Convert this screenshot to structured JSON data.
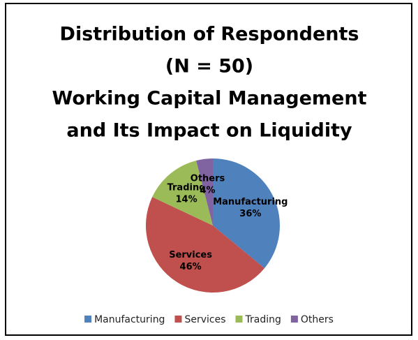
{
  "chart_data": {
    "type": "pie",
    "title": [
      "Distribution of Respondents",
      "(N = 50)",
      "Working Capital Management",
      "and Its Impact on Liquidity"
    ],
    "categories": [
      "Manufacturing",
      "Services",
      "Trading",
      "Others"
    ],
    "values": [
      36,
      46,
      14,
      4
    ],
    "value_labels": [
      "36%",
      "46%",
      "14%",
      "4%"
    ],
    "colors": [
      "#4f81bd",
      "#c0504d",
      "#9bbb59",
      "#8064a2"
    ],
    "legend": "bottom"
  }
}
